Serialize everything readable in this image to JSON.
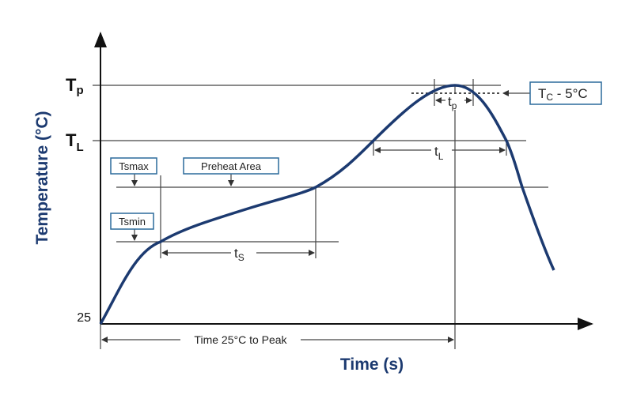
{
  "axes": {
    "y_label": "Temperature (°C)",
    "x_label": "Time (s)",
    "y_origin_label": "25"
  },
  "levels": {
    "tp": {
      "base": "T",
      "sub": "p"
    },
    "tl": {
      "base": "T",
      "sub": "L"
    }
  },
  "callouts": {
    "tsmax": "Tsmax",
    "preheat": "Preheat Area",
    "tsmin": "Tsmin",
    "tc": {
      "base": "T",
      "sub": "C",
      "rest": " - 5°C"
    }
  },
  "intervals": {
    "ts": {
      "base": "t",
      "sub": "S"
    },
    "tl": {
      "base": "t",
      "sub": "L"
    },
    "tp": {
      "base": "t",
      "sub": "p"
    },
    "to_peak": "Time 25°C to Peak"
  }
}
